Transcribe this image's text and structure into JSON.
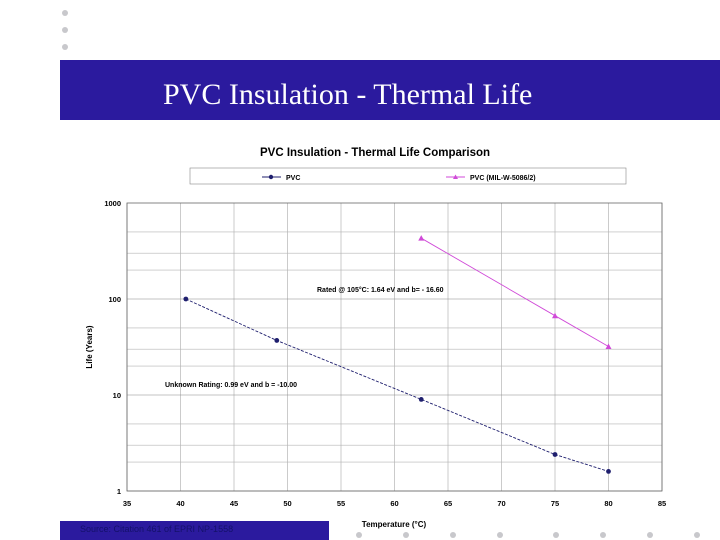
{
  "slide": {
    "title": "PVC Insulation - Thermal Life",
    "source": "Source: Citation 461 of EPRI NP-1558"
  },
  "chart_data": {
    "type": "line",
    "title": "PVC Insulation - Thermal Life Comparison",
    "xlabel": "Temperature (°C)",
    "ylabel": "Life (Years)",
    "xlim": [
      35,
      85
    ],
    "ylim": [
      1,
      1000
    ],
    "yscale": "log",
    "x_ticks": [
      "35",
      "40",
      "45",
      "50",
      "55",
      "60",
      "65",
      "70",
      "75",
      "80",
      "85"
    ],
    "y_ticks": [
      "1000",
      "100",
      "10",
      "1"
    ],
    "legend_position": "top",
    "grid": true,
    "series": [
      {
        "name": "PVC",
        "color": "#1f1f6e",
        "marker": "circle",
        "points": [
          [
            40.5,
            100
          ],
          [
            49,
            37
          ],
          [
            62.5,
            9
          ],
          [
            75,
            2.4
          ],
          [
            80,
            1.6
          ]
        ]
      },
      {
        "name": "PVC (MIL-W-5086/2)",
        "color": "#d04ad8",
        "marker": "triangle",
        "points": [
          [
            62.5,
            430
          ],
          [
            75,
            67
          ],
          [
            80,
            32
          ]
        ]
      }
    ],
    "annotations": [
      "Rated @ 105°C:  1.64 eV and b= - 16.60",
      "Unknown Rating:  0.99 eV and b = -10.00"
    ]
  }
}
